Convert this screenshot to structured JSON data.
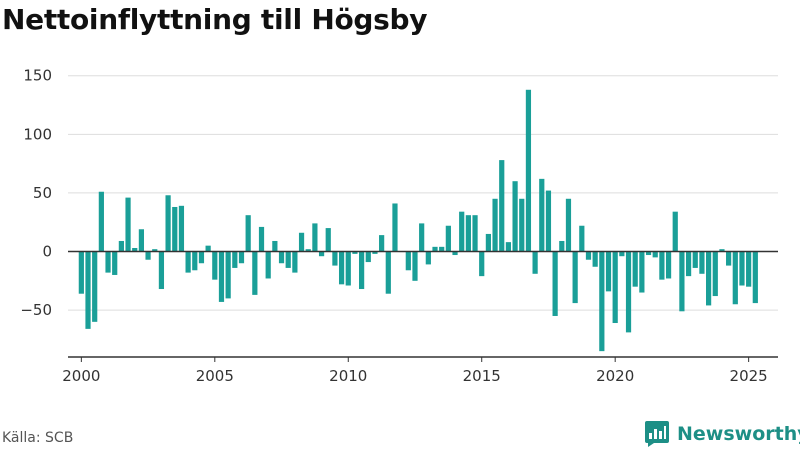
{
  "title": "Nettoinflyttning till Högsby",
  "source": "Källa: SCB",
  "brand": {
    "name": "Newsworthy",
    "icon": "newsworthy-logo-icon"
  },
  "colors": {
    "bar": "#1a9f98",
    "axis": "#333333",
    "grid": "#dddddd",
    "brand": "#1d8f86"
  },
  "chart_data": {
    "type": "bar",
    "xlabel": "",
    "ylabel": "",
    "ylim": [
      -90,
      160
    ],
    "xlim": [
      1999.5,
      2026.1
    ],
    "y_ticks": [
      -50,
      0,
      50,
      100,
      150
    ],
    "x_ticks": [
      2000,
      2005,
      2010,
      2015,
      2020,
      2025
    ],
    "grid": true,
    "x_start": 2000,
    "step": 0.25,
    "values": [
      -36,
      -66,
      -60,
      51,
      -18,
      -20,
      9,
      46,
      3,
      19,
      -7,
      2,
      -32,
      48,
      38,
      39,
      -18,
      -16,
      -10,
      5,
      -24,
      -43,
      -40,
      -14,
      -10,
      31,
      -37,
      21,
      -23,
      9,
      -10,
      -14,
      -18,
      16,
      2,
      24,
      -4,
      20,
      -12,
      -28,
      -29,
      -2,
      -32,
      -9,
      -2,
      14,
      -36,
      41,
      0,
      -16,
      -25,
      24,
      -11,
      4,
      4,
      22,
      -3,
      34,
      31,
      31,
      -21,
      15,
      45,
      78,
      8,
      60,
      45,
      138,
      -19,
      62,
      52,
      -55,
      9,
      45,
      -44,
      22,
      -7,
      -13,
      -85,
      -34,
      -61,
      -4,
      -69,
      -30,
      -35,
      -3,
      -5,
      -24,
      -23,
      34,
      -51,
      -21,
      -14,
      -19,
      -46,
      -38,
      2,
      -12,
      -45,
      -29,
      -30,
      -44
    ]
  }
}
